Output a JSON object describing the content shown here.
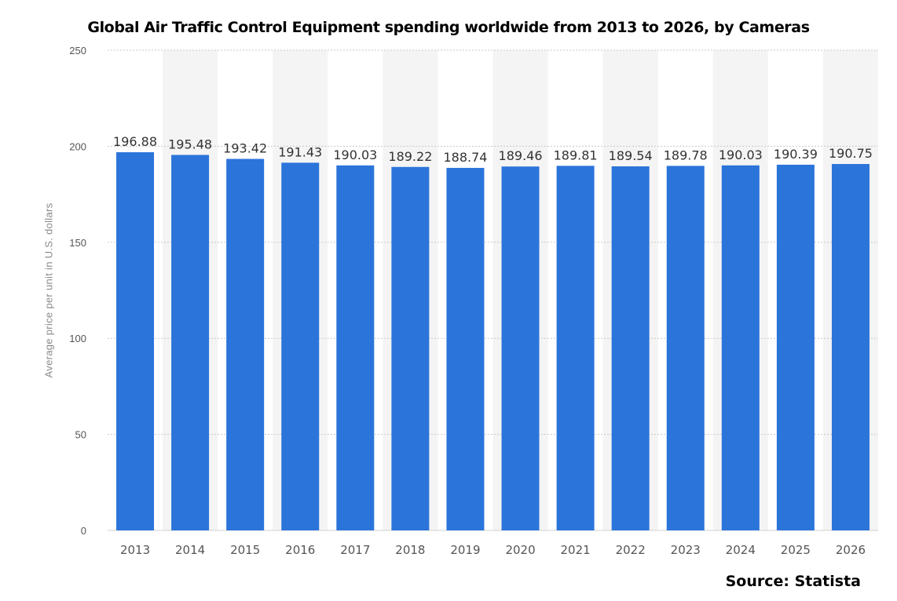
{
  "chart_data": {
    "type": "bar",
    "title": "Global Air Traffic Control Equipment spending worldwide from 2013 to 2026, by Cameras",
    "xlabel": "",
    "ylabel": "Average price per unit in U.S. dollars",
    "ylim": [
      0,
      250
    ],
    "yticks": [
      0,
      50,
      100,
      150,
      200,
      250
    ],
    "categories": [
      "2013",
      "2014",
      "2015",
      "2016",
      "2017",
      "2018",
      "2019",
      "2020",
      "2021",
      "2022",
      "2023",
      "2024",
      "2025",
      "2026"
    ],
    "values": [
      196.88,
      195.48,
      193.42,
      191.43,
      190.03,
      189.22,
      188.74,
      189.46,
      189.81,
      189.54,
      189.78,
      190.03,
      190.39,
      190.75
    ],
    "value_labels": [
      "196.88",
      "195.48",
      "193.42",
      "191.43",
      "190.03",
      "189.22",
      "188.74",
      "189.46",
      "189.81",
      "189.54",
      "189.78",
      "190.03",
      "190.39",
      "190.75"
    ],
    "grid": true,
    "bar_color": "#2b74da",
    "band_color": "#f4f4f4",
    "grid_color": "#c8c8c8",
    "axis_text_color": "#555555"
  },
  "source": "Source: Statista"
}
